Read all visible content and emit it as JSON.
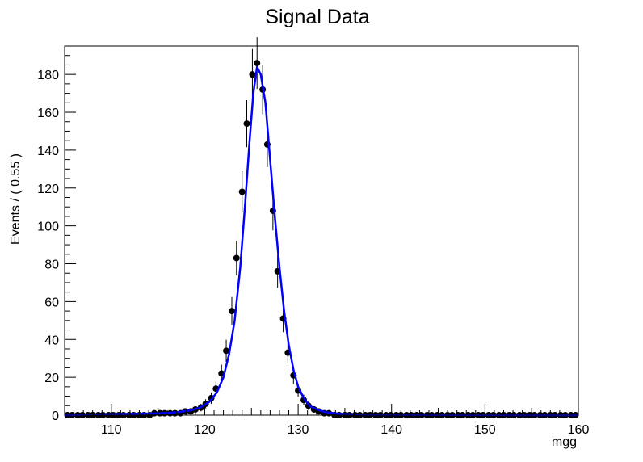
{
  "chart_data": {
    "type": "scatter",
    "title": "Signal Data",
    "xlabel": "mgg",
    "ylabel": "Events / ( 0.55 )",
    "xlim": [
      105,
      160
    ],
    "ylim": [
      0,
      195
    ],
    "x_ticks": [
      110,
      120,
      130,
      140,
      150,
      160
    ],
    "y_ticks": [
      0,
      20,
      40,
      60,
      80,
      100,
      120,
      140,
      160,
      180
    ],
    "grid": false,
    "legend": "none",
    "series": [
      {
        "kind": "points",
        "color": "#000000",
        "x": [
          105.3,
          105.8,
          106.4,
          106.9,
          107.5,
          108.0,
          108.6,
          109.1,
          109.7,
          110.2,
          110.8,
          111.3,
          111.9,
          112.4,
          113.0,
          113.5,
          114.1,
          114.6,
          115.2,
          115.7,
          116.3,
          116.8,
          117.4,
          117.9,
          118.5,
          119.0,
          119.6,
          120.1,
          120.7,
          121.2,
          121.8,
          122.3,
          122.9,
          123.4,
          124.0,
          124.5,
          125.1,
          125.6,
          126.2,
          126.7,
          127.3,
          127.8,
          128.4,
          128.9,
          129.5,
          130.0,
          130.6,
          131.1,
          131.7,
          132.2,
          132.8,
          133.3,
          133.9,
          134.4,
          135.0,
          135.5,
          136.1,
          136.6,
          137.2,
          137.7,
          138.3,
          138.8,
          139.4,
          139.9,
          140.5,
          141.0,
          141.6,
          142.1,
          142.7,
          143.2,
          143.8,
          144.3,
          144.9,
          145.4,
          146.0,
          146.5,
          147.1,
          147.6,
          148.2,
          148.7,
          149.3,
          149.8,
          150.4,
          150.9,
          151.5,
          152.0,
          152.6,
          153.1,
          153.7,
          154.2,
          154.8,
          155.3,
          155.9,
          156.4,
          157.0,
          157.5,
          158.1,
          158.6,
          159.2,
          159.7
        ],
        "y": [
          0,
          0,
          0,
          0,
          0,
          0,
          0,
          0,
          0,
          0,
          0,
          0,
          0,
          0,
          0,
          0,
          0,
          1,
          1,
          1,
          1,
          1,
          1,
          2,
          2,
          3,
          4,
          6,
          9,
          14,
          22,
          34,
          55,
          83,
          118,
          154,
          180,
          186,
          172,
          143,
          108,
          76,
          51,
          33,
          21,
          13,
          8,
          5,
          3,
          2,
          1,
          1,
          0,
          0,
          0,
          0,
          0,
          0,
          0,
          0,
          0,
          0,
          0,
          0,
          0,
          0,
          0,
          0,
          0,
          0,
          0,
          0,
          0,
          0,
          0,
          0,
          0,
          0,
          0,
          0,
          0,
          0,
          0,
          0,
          0,
          0,
          0,
          0,
          0,
          0,
          0,
          0,
          0,
          0,
          0,
          0,
          0,
          0,
          0,
          0
        ]
      },
      {
        "kind": "line",
        "color": "#0000ff",
        "x": [
          105.0,
          115.0,
          117.0,
          118.5,
          119.5,
          120.5,
          121.3,
          122.0,
          122.6,
          123.2,
          123.8,
          124.3,
          124.8,
          125.2,
          125.6,
          126.0,
          126.5,
          127.0,
          127.5,
          128.0,
          128.5,
          129.0,
          129.5,
          130.0,
          130.6,
          131.2,
          132.0,
          133.0,
          134.5,
          137.0,
          160.0
        ],
        "y": [
          0,
          1,
          1.5,
          2.5,
          4,
          7,
          12,
          20,
          32,
          50,
          78,
          110,
          145,
          170,
          184,
          180,
          165,
          135,
          105,
          78,
          55,
          37,
          24,
          15,
          9,
          5,
          3,
          1.5,
          0.7,
          0.2,
          0
        ]
      }
    ]
  }
}
